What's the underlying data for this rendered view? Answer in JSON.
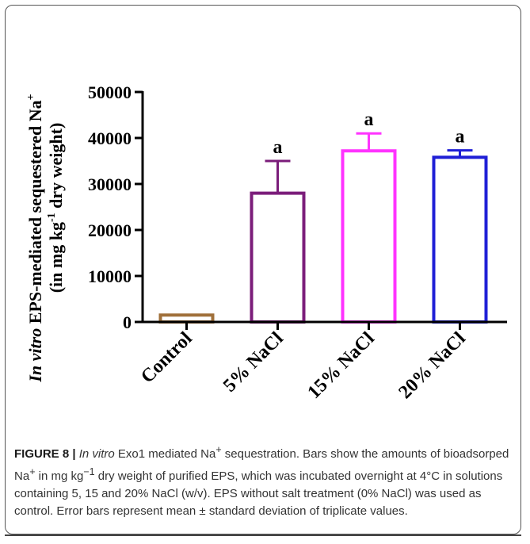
{
  "chart_data": {
    "type": "bar",
    "ylabel_line1_italic": "In vitro",
    "ylabel_line1_rest": " EPS-mediated sequestered Na",
    "ylabel_line1_sup": "+",
    "ylabel_line2_a": "(in mg kg",
    "ylabel_line2_sup": "-1",
    "ylabel_line2_b": " dry weight)",
    "ylim": [
      0,
      50000
    ],
    "yticks": [
      0,
      10000,
      20000,
      30000,
      40000,
      50000
    ],
    "ytick_labels": [
      "0",
      "10000",
      "20000",
      "30000",
      "40000",
      "50000"
    ],
    "categories": [
      "Control",
      "5% NaCl",
      "15% NaCl",
      "20% NaCl"
    ],
    "values": [
      1500,
      28000,
      37200,
      35800
    ],
    "errors": [
      0,
      7000,
      3800,
      1500
    ],
    "significance": [
      "",
      "a",
      "a",
      "a"
    ],
    "colors": [
      "#a0703a",
      "#7b1d7a",
      "#ff33ff",
      "#1f1fd6"
    ]
  },
  "caption": {
    "label": "FIGURE 8 |",
    "italic": "In vitro",
    "part1": " Exo1 mediated Na",
    "sup1": "+",
    "part2": " sequestration. Bars show the amounts of bioadsorped Na",
    "sup2": "+",
    "part3": " in mg kg",
    "sup3": "−1",
    "part4": " dry weight of purified EPS, which was incubated overnight at 4°C in solutions containing 5, 15 and 20% NaCl (w/v). EPS without salt treatment (0% NaCl) was used as control. Error bars represent mean ± standard deviation of triplicate values."
  }
}
